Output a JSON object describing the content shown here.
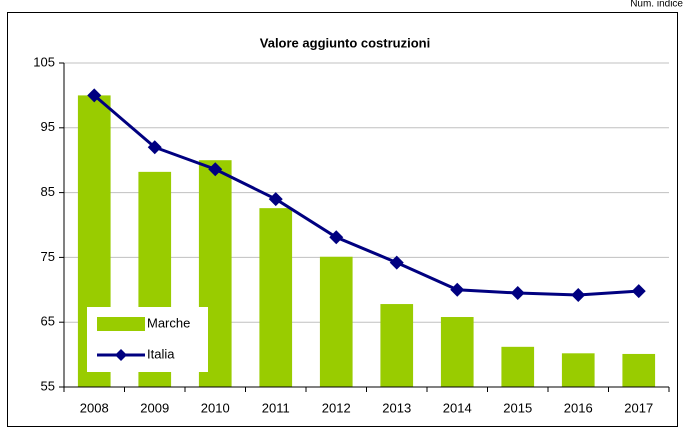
{
  "note": "Num. indice",
  "chart_data": {
    "type": "bar-line",
    "title": "Valore aggiunto costruzioni",
    "categories": [
      "2008",
      "2009",
      "2010",
      "2011",
      "2012",
      "2013",
      "2014",
      "2015",
      "2016",
      "2017"
    ],
    "series": [
      {
        "name": "Marche",
        "type": "bar",
        "color": "#99cc00",
        "values": [
          100,
          88.2,
          90,
          82.6,
          75.1,
          67.8,
          65.8,
          61.2,
          60.2,
          60.1
        ]
      },
      {
        "name": "Italia",
        "type": "line",
        "color": "#000080",
        "values": [
          100,
          92,
          88.6,
          84,
          78.1,
          74.2,
          70,
          69.5,
          69.2,
          69.8
        ]
      }
    ],
    "ylim": [
      55,
      105
    ],
    "yticks": [
      55,
      65,
      75,
      85,
      95,
      105
    ],
    "grid": true,
    "legend": "bottom-left"
  }
}
